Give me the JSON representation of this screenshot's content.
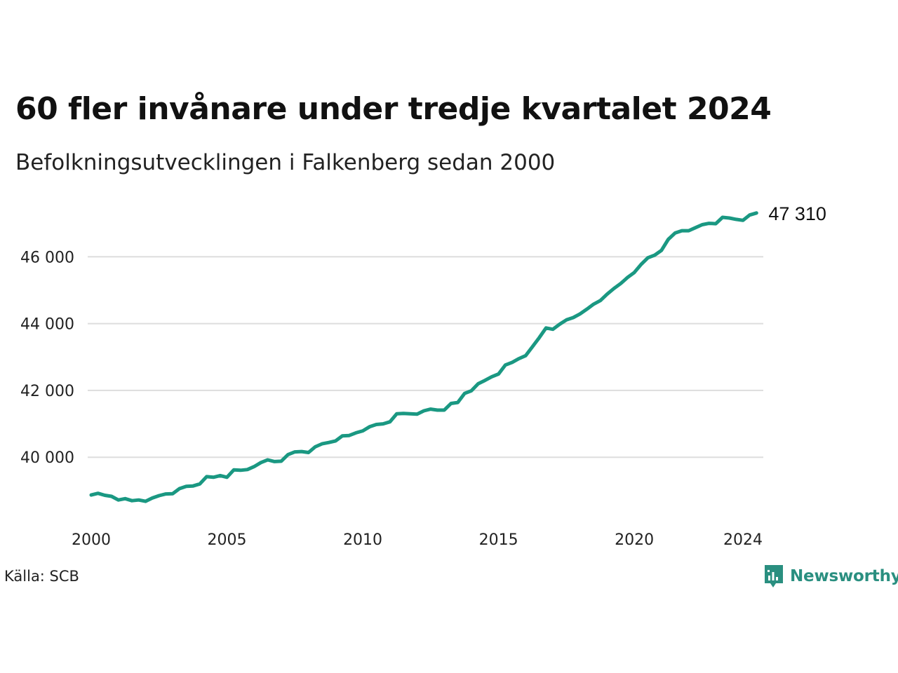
{
  "title": "60 fler invånare under tredje kvartalet 2024",
  "subtitle": "Befolkningsutvecklingen i Falkenberg sedan 2000",
  "source": "Källa: SCB",
  "brand": "Newsworthy",
  "colors": {
    "line": "#1a9882",
    "grid": "#dddddd",
    "brand": "#2a8f80"
  },
  "chart_data": {
    "type": "line",
    "title": "60 fler invånare under tredje kvartalet 2024",
    "subtitle": "Befolkningsutvecklingen i Falkenberg sedan 2000",
    "xlabel": "",
    "ylabel": "",
    "xlim": [
      2000,
      2024.75
    ],
    "ylim": [
      38200,
      47600
    ],
    "y_ticks": [
      40000,
      42000,
      44000,
      46000
    ],
    "y_tick_labels": [
      "40 000",
      "42 000",
      "44 000",
      "46 000"
    ],
    "x_ticks": [
      2000,
      2005,
      2010,
      2015,
      2020,
      2024
    ],
    "x_tick_labels": [
      "2000",
      "2005",
      "2010",
      "2015",
      "2020",
      "2024"
    ],
    "grid": true,
    "end_label": "47 310",
    "series": [
      {
        "values": [
          [
            2000.0,
            38870
          ],
          [
            2000.25,
            38920
          ],
          [
            2000.5,
            38860
          ],
          [
            2000.75,
            38830
          ],
          [
            2001.0,
            38720
          ],
          [
            2001.25,
            38760
          ],
          [
            2001.5,
            38700
          ],
          [
            2001.75,
            38720
          ],
          [
            2002.0,
            38680
          ],
          [
            2002.25,
            38780
          ],
          [
            2002.5,
            38850
          ],
          [
            2002.75,
            38900
          ],
          [
            2003.0,
            38910
          ],
          [
            2003.25,
            39060
          ],
          [
            2003.5,
            39130
          ],
          [
            2003.75,
            39140
          ],
          [
            2004.0,
            39200
          ],
          [
            2004.25,
            39420
          ],
          [
            2004.5,
            39400
          ],
          [
            2004.75,
            39450
          ],
          [
            2005.0,
            39400
          ],
          [
            2005.25,
            39620
          ],
          [
            2005.5,
            39610
          ],
          [
            2005.75,
            39630
          ],
          [
            2006.0,
            39720
          ],
          [
            2006.25,
            39840
          ],
          [
            2006.5,
            39920
          ],
          [
            2006.75,
            39870
          ],
          [
            2007.0,
            39880
          ],
          [
            2007.25,
            40080
          ],
          [
            2007.5,
            40160
          ],
          [
            2007.75,
            40170
          ],
          [
            2008.0,
            40140
          ],
          [
            2008.25,
            40310
          ],
          [
            2008.5,
            40400
          ],
          [
            2008.75,
            40440
          ],
          [
            2009.0,
            40490
          ],
          [
            2009.25,
            40640
          ],
          [
            2009.5,
            40650
          ],
          [
            2009.75,
            40730
          ],
          [
            2010.0,
            40790
          ],
          [
            2010.25,
            40910
          ],
          [
            2010.5,
            40980
          ],
          [
            2010.75,
            41000
          ],
          [
            2011.0,
            41060
          ],
          [
            2011.25,
            41300
          ],
          [
            2011.5,
            41310
          ],
          [
            2011.75,
            41300
          ],
          [
            2012.0,
            41290
          ],
          [
            2012.25,
            41390
          ],
          [
            2012.5,
            41440
          ],
          [
            2012.75,
            41410
          ],
          [
            2013.0,
            41410
          ],
          [
            2013.25,
            41610
          ],
          [
            2013.5,
            41640
          ],
          [
            2013.75,
            41910
          ],
          [
            2014.0,
            41990
          ],
          [
            2014.25,
            42200
          ],
          [
            2014.5,
            42300
          ],
          [
            2014.75,
            42410
          ],
          [
            2015.0,
            42490
          ],
          [
            2015.25,
            42760
          ],
          [
            2015.5,
            42840
          ],
          [
            2015.75,
            42950
          ],
          [
            2016.0,
            43040
          ],
          [
            2016.25,
            43310
          ],
          [
            2016.5,
            43580
          ],
          [
            2016.75,
            43870
          ],
          [
            2017.0,
            43830
          ],
          [
            2017.25,
            43980
          ],
          [
            2017.5,
            44110
          ],
          [
            2017.75,
            44180
          ],
          [
            2018.0,
            44290
          ],
          [
            2018.25,
            44430
          ],
          [
            2018.5,
            44580
          ],
          [
            2018.75,
            44690
          ],
          [
            2019.0,
            44880
          ],
          [
            2019.25,
            45050
          ],
          [
            2019.5,
            45200
          ],
          [
            2019.75,
            45380
          ],
          [
            2020.0,
            45530
          ],
          [
            2020.25,
            45770
          ],
          [
            2020.5,
            45970
          ],
          [
            2020.75,
            46050
          ],
          [
            2021.0,
            46190
          ],
          [
            2021.25,
            46520
          ],
          [
            2021.5,
            46710
          ],
          [
            2021.75,
            46780
          ],
          [
            2022.0,
            46780
          ],
          [
            2022.25,
            46870
          ],
          [
            2022.5,
            46960
          ],
          [
            2022.75,
            47000
          ],
          [
            2023.0,
            46990
          ],
          [
            2023.25,
            47180
          ],
          [
            2023.5,
            47160
          ],
          [
            2023.75,
            47120
          ],
          [
            2024.0,
            47090
          ],
          [
            2024.25,
            47250
          ],
          [
            2024.5,
            47310
          ]
        ]
      }
    ]
  }
}
